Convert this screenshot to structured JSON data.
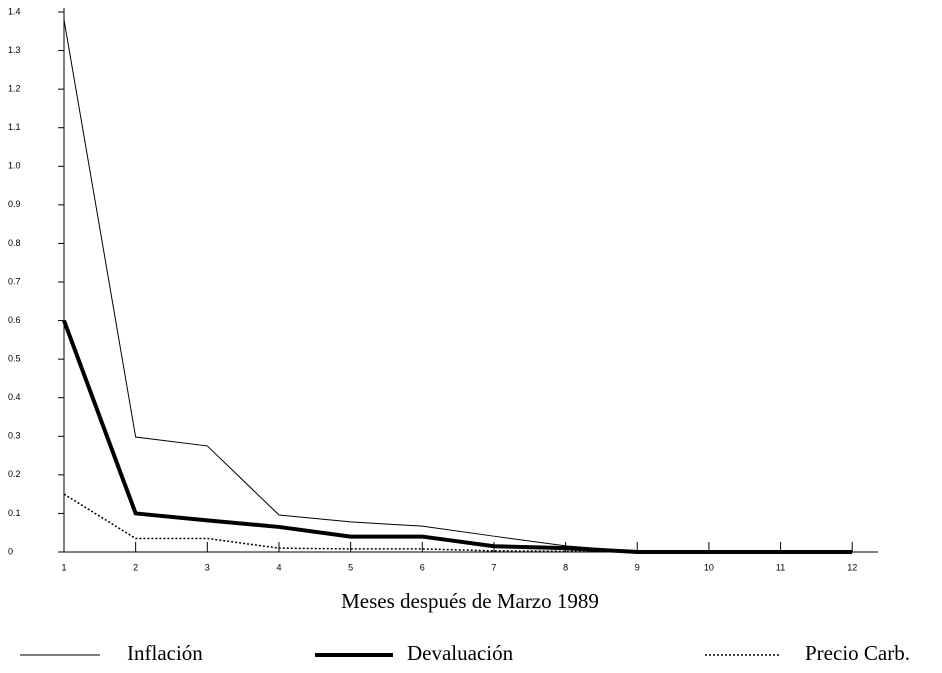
{
  "chart_data": {
    "type": "line",
    "x_label": "Meses después de Marzo 1989",
    "x": [
      1,
      2,
      3,
      4,
      5,
      6,
      7,
      8,
      9,
      10,
      11,
      12
    ],
    "xlim": [
      1,
      12.36
    ],
    "xticks": [
      1,
      2,
      3,
      4,
      5,
      6,
      7,
      8,
      9,
      10,
      11,
      12
    ],
    "ylim": [
      0,
      1.4
    ],
    "yticks": [
      0,
      0.1,
      0.2,
      0.3,
      0.4,
      0.5,
      0.6,
      0.7,
      0.8,
      0.9,
      {
        "value": 1,
        "label": "1.0"
      },
      1.1,
      1.2,
      1.3,
      1.4
    ],
    "grid": false,
    "legend": "bottom",
    "series": [
      {
        "name": "Inflación",
        "color": "#000000",
        "width": 1,
        "dash": "solid",
        "values": [
          1.38,
          0.298,
          0.275,
          0.096,
          0.078,
          0.067,
          0.041,
          0.016,
          0.001,
          0.001,
          0,
          0.002
        ]
      },
      {
        "name": "Devaluación",
        "color": "#000000",
        "width": 4,
        "dash": "solid",
        "values": [
          0.6,
          0.1,
          0.082,
          0.065,
          0.04,
          0.04,
          0.015,
          0.01,
          0,
          0,
          0,
          0
        ]
      },
      {
        "name": "Precio Carb.",
        "color": "#000000",
        "width": 1.5,
        "dash": "dotted",
        "values": [
          0.15,
          0.035,
          0.035,
          0.01,
          0.008,
          0.008,
          0.003,
          0.002,
          0,
          0,
          0,
          0
        ]
      }
    ]
  }
}
